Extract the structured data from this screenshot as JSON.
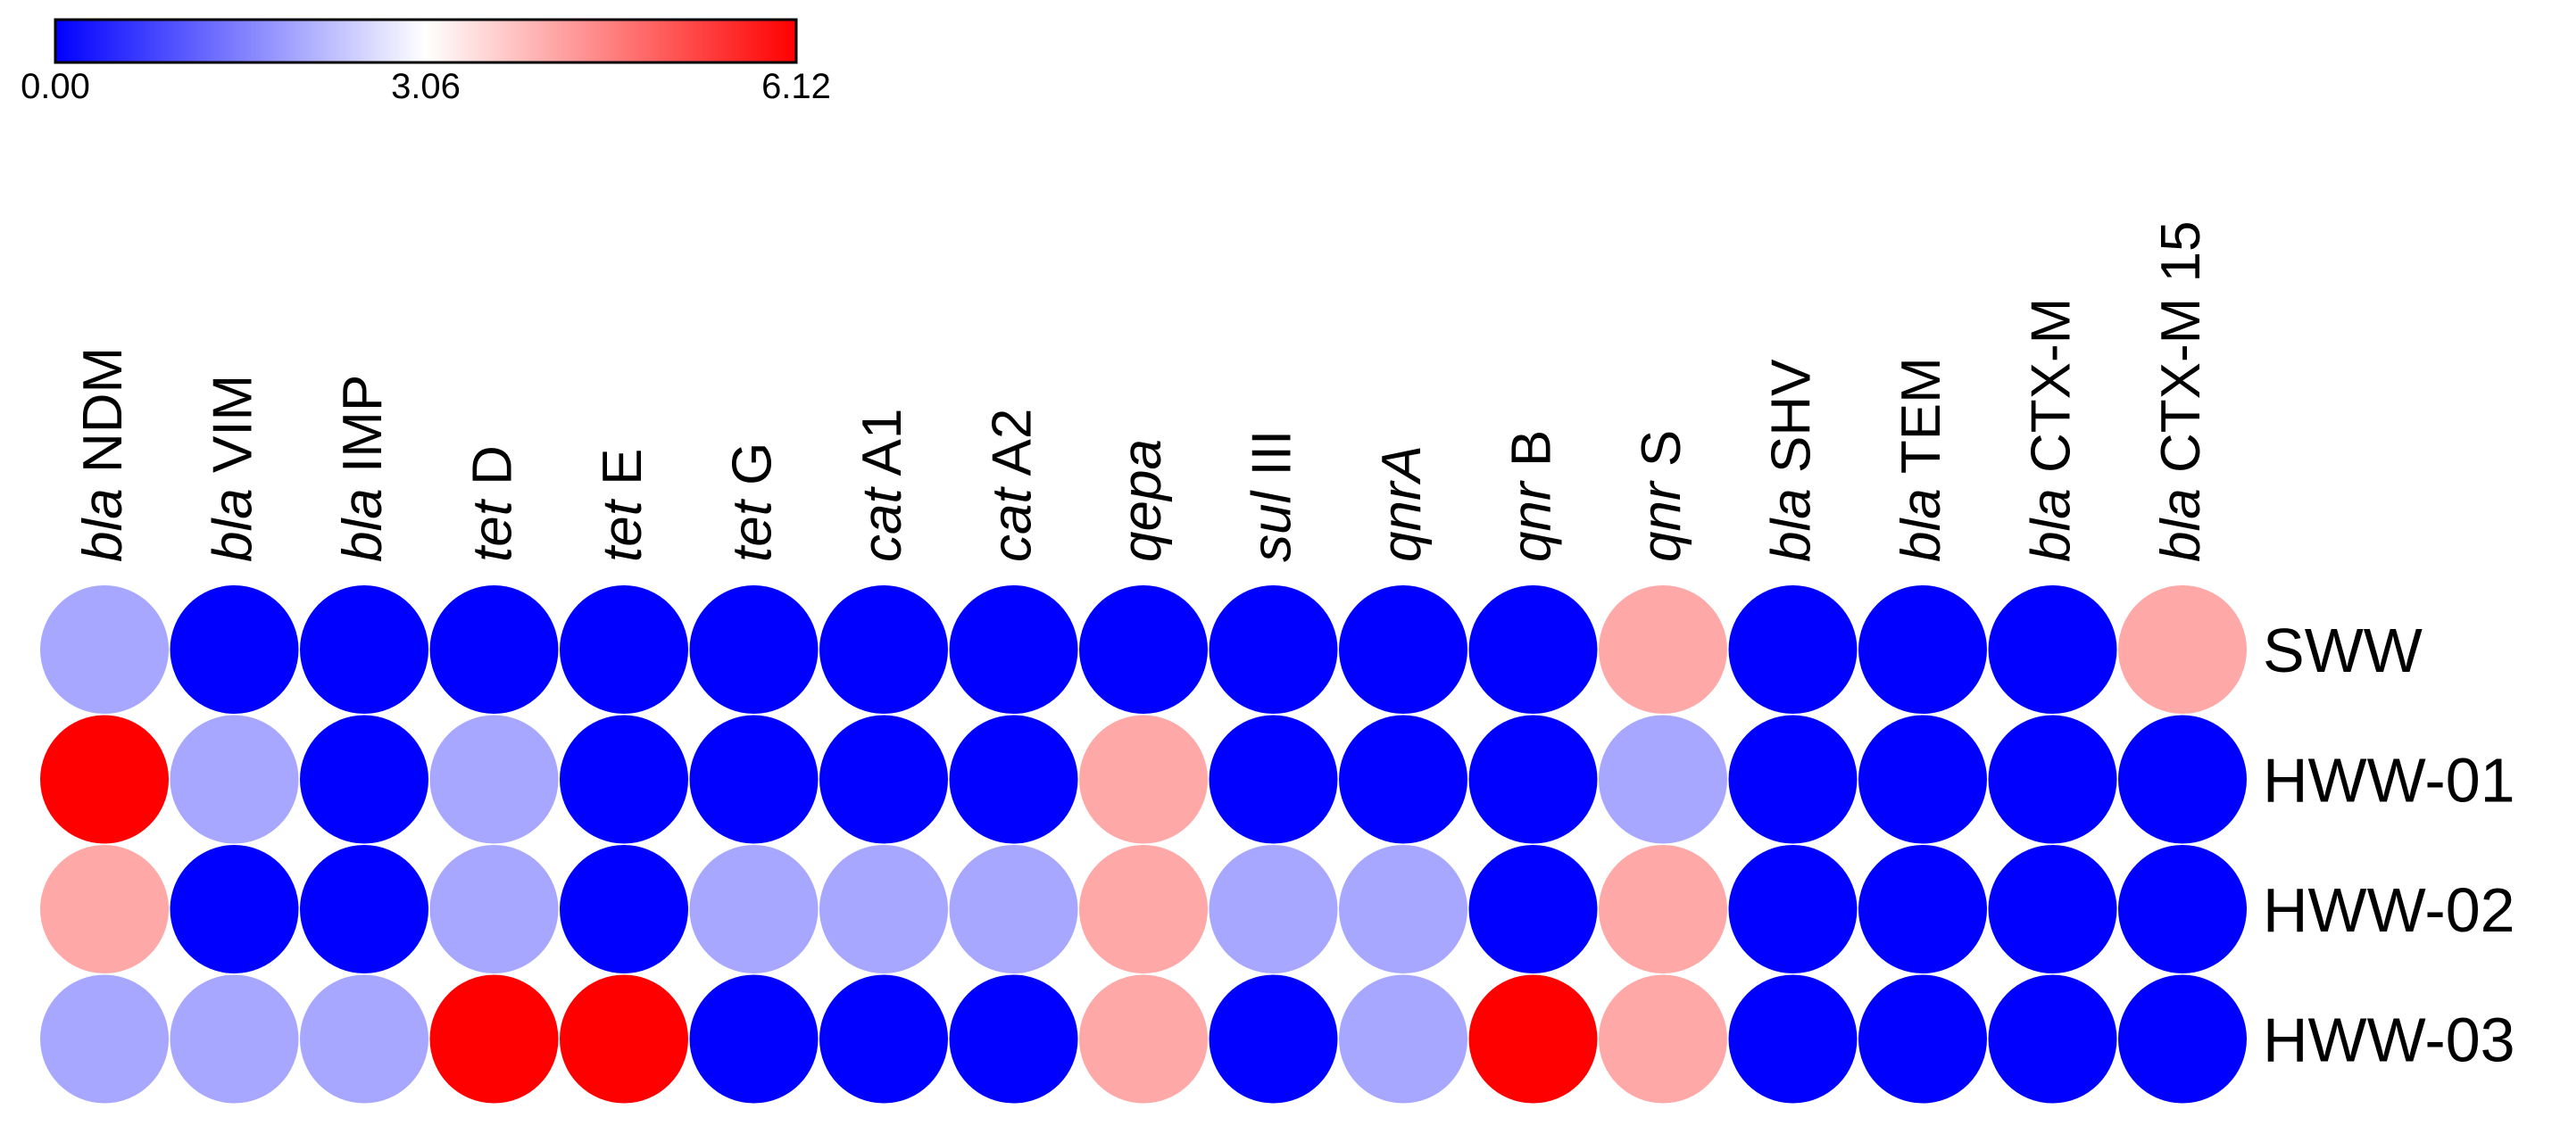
{
  "chart_data": {
    "type": "heatmap",
    "title": "",
    "colorbar": {
      "min": 0.0,
      "mid": 3.06,
      "max": 6.12,
      "tick_labels": [
        "0.00",
        "3.06",
        "6.12"
      ],
      "colors": {
        "low": "#0000ff",
        "mid": "#ffffff",
        "high": "#ff0000"
      }
    },
    "columns": [
      {
        "italic": "bla",
        "plain": " NDM"
      },
      {
        "italic": "bla",
        "plain": " VIM"
      },
      {
        "italic": "bla",
        "plain": " IMP"
      },
      {
        "italic": "tet",
        "plain": " D"
      },
      {
        "italic": "tet",
        "plain": " E"
      },
      {
        "italic": "tet",
        "plain": " G"
      },
      {
        "italic": "cat",
        "plain": " A1"
      },
      {
        "italic": "cat",
        "plain": " A2"
      },
      {
        "italic": "qepa",
        "plain": ""
      },
      {
        "italic": "sul",
        "plain": " III"
      },
      {
        "italic": "qnrA",
        "plain": ""
      },
      {
        "italic": "qnr",
        "plain": " B"
      },
      {
        "italic": "qnr",
        "plain": " S"
      },
      {
        "italic": "bla",
        "plain": " SHV"
      },
      {
        "italic": "bla",
        "plain": " TEM"
      },
      {
        "italic": "bla",
        "plain": " CTX-M"
      },
      {
        "italic": "bla",
        "plain": " CTX-M 15"
      }
    ],
    "rows": [
      "SWW",
      "HWW-01",
      "HWW-02",
      "HWW-03"
    ],
    "values": [
      [
        2.0,
        0.0,
        0.0,
        0.0,
        0.0,
        0.0,
        0.0,
        0.0,
        0.0,
        0.0,
        0.0,
        0.0,
        4.1,
        0.0,
        0.0,
        0.0,
        4.1
      ],
      [
        6.12,
        2.0,
        0.0,
        2.0,
        0.0,
        0.0,
        0.0,
        0.0,
        4.1,
        0.0,
        0.0,
        0.0,
        2.0,
        0.0,
        0.0,
        0.0,
        0.0
      ],
      [
        4.1,
        0.0,
        0.0,
        2.0,
        0.0,
        2.0,
        2.0,
        2.0,
        4.1,
        2.0,
        2.0,
        0.0,
        4.1,
        0.0,
        0.0,
        0.0,
        0.0
      ],
      [
        2.0,
        2.0,
        2.0,
        6.12,
        6.12,
        0.0,
        0.0,
        0.0,
        4.1,
        0.0,
        2.0,
        6.12,
        4.1,
        0.0,
        0.0,
        0.0,
        0.0
      ]
    ]
  }
}
